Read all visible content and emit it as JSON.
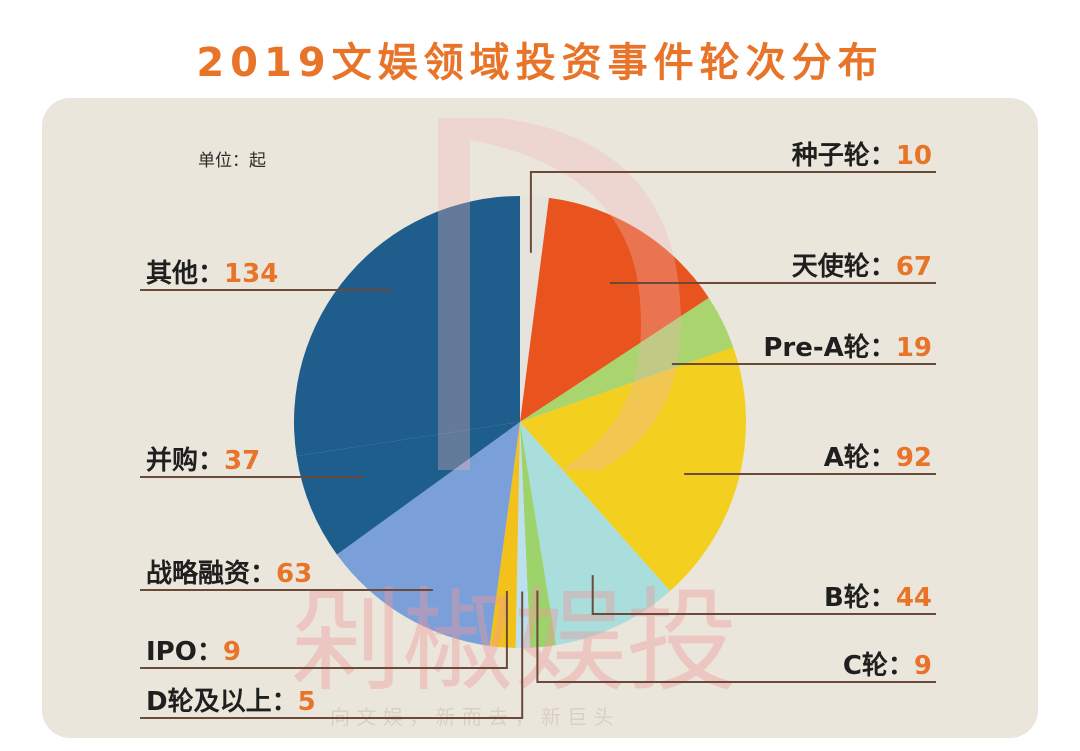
{
  "chart_data": {
    "type": "pie",
    "title": "2019文娱领域投资事件轮次分布",
    "unit_label": "单位：起",
    "slices": [
      {
        "label": "种子轮",
        "value": 10,
        "color": "#e6e3dd",
        "label_text": "种子轮：",
        "value_text": "10"
      },
      {
        "label": "天使轮",
        "value": 67,
        "color": "#e9541e",
        "label_text": "天使轮：",
        "value_text": "67"
      },
      {
        "label": "Pre-A轮",
        "value": 19,
        "color": "#a9d46e",
        "label_text": "Pre-A轮：",
        "value_text": "19"
      },
      {
        "label": "A轮",
        "value": 92,
        "color": "#f3d020",
        "label_text": "A轮：",
        "value_text": "92"
      },
      {
        "label": "B轮",
        "value": 44,
        "color": "#a9dedc",
        "label_text": "B轮：",
        "value_text": "44"
      },
      {
        "label": "C轮",
        "value": 9,
        "color": "#9dd36b",
        "label_text": "C轮：",
        "value_text": "9"
      },
      {
        "label": "D轮及以上",
        "value": 5,
        "color": "#bde0f0",
        "label_text": "D轮及以上：",
        "value_text": "5"
      },
      {
        "label": "IPO",
        "value": 9,
        "color": "#f2c21a",
        "label_text": "IPO：",
        "value_text": "9"
      },
      {
        "label": "战略融资",
        "value": 63,
        "color": "#7b9fd8",
        "label_text": "战略融资：",
        "value_text": "63"
      },
      {
        "label": "并购",
        "value": 37,
        "color": "#1d5e8c",
        "label_text": "并购：",
        "value_text": "37"
      },
      {
        "label": "其他",
        "value": 134,
        "color": "#1f5d8c",
        "label_text": "其他：",
        "value_text": "134"
      }
    ]
  },
  "watermark": {
    "logo_text": "剁椒娱投",
    "tagline": "向 文 娱 ， 新 而 去 ， 新 巨 头"
  },
  "colors": {
    "title": "#e8742a",
    "background": "#ebe6dc",
    "value": "#e8742a",
    "leader_line": "#6b4a3a"
  }
}
